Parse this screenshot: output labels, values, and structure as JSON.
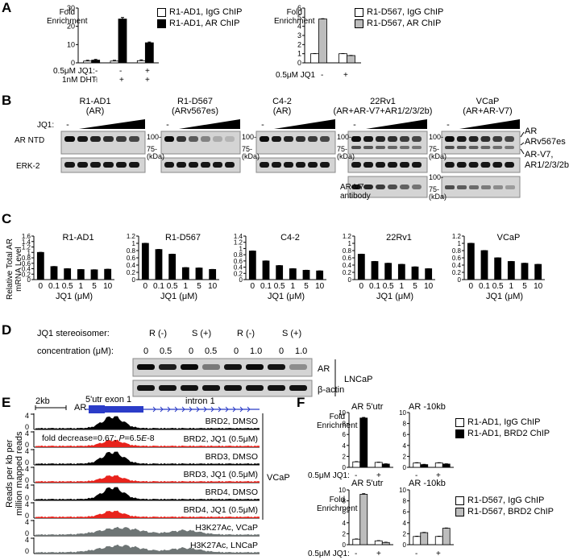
{
  "panels": {
    "A": "A",
    "B": "B",
    "C": "C",
    "D": "D",
    "E": "E",
    "F": "F"
  },
  "panelA": {
    "left": {
      "ylabel": "Fold\nEnrichment",
      "legend": [
        "R1-AD1, IgG ChIP",
        "R1-AD1, AR ChIP"
      ],
      "row1_label": "0.5μM JQ1:",
      "row1": [
        "-",
        "-",
        "+"
      ],
      "row2_label": "1nM DHT:",
      "row2": [
        "-",
        "+",
        "+"
      ]
    },
    "right": {
      "ylabel": "Fold\nEnrichment",
      "legend": [
        "R1-D567, IgG ChIP",
        "R1-D567, AR ChIP"
      ],
      "row1_label": "0.5μM JQ1",
      "row1": [
        "-",
        "+"
      ]
    }
  },
  "panelB": {
    "jq1_label": "JQ1:",
    "rows": [
      "AR NTD",
      "ERK-2"
    ],
    "cells": [
      {
        "name": "R1-AD1",
        "sub": "(AR)"
      },
      {
        "name": "R1-D567",
        "sub": "(ARv567es)"
      },
      {
        "name": "C4-2",
        "sub": "(AR)"
      },
      {
        "name": "22Rv1",
        "sub": "(AR+AR-V7+AR1/2/3/2b)"
      },
      {
        "name": "VCaP",
        "sub": "(AR+AR-V7)"
      }
    ],
    "markers": [
      "100-",
      "75-",
      "(kDa)"
    ],
    "right_labels": [
      "AR",
      "ARv567es",
      "AR-V7,",
      "AR1/2/3/2b"
    ],
    "v7_label": [
      "AR-V7",
      "antibody"
    ]
  },
  "panelC": {
    "ylabel": "Relative Total AR\nmRNA Level",
    "xlabel": "JQ1 (μM)",
    "xticks": [
      "0",
      "0.1",
      "0.5",
      "1",
      "5",
      "10"
    ]
  },
  "panelD": {
    "row1_label": "JQ1 stereoisomer:",
    "stereo": [
      "R (-)",
      "S (+)",
      "R (-)",
      "S (+)"
    ],
    "row2_label": "concentration (μM):",
    "conc": [
      "0",
      "0.5",
      "0",
      "0.5",
      "0",
      "1.0",
      "0",
      "1.0"
    ],
    "bands": [
      "AR",
      "β-actin"
    ],
    "cell": "LNCaP"
  },
  "panelE": {
    "scale": "2kb",
    "gene": "AR",
    "utr": "5'utr exon 1",
    "intron": "intron 1",
    "ylabel": "Reads per kb per\nmillion mapped reads",
    "annotation_a": "fold decrease=0.67; ",
    "annotation_b": "P",
    "annotation_c": "=6.5",
    "annotation_d": "E",
    "annotation_e": "-8",
    "group": "VCaP",
    "tracks": [
      {
        "label": "BRD2, DMSO",
        "color": "#000000"
      },
      {
        "label": "BRD2, JQ1 (0.5μM)",
        "color": "#e8231c"
      },
      {
        "label": "BRD3, DMSO",
        "color": "#000000"
      },
      {
        "label": "BRD3, JQ1 (0.5μM)",
        "color": "#e8231c"
      },
      {
        "label": "BRD4, DMSO",
        "color": "#000000"
      },
      {
        "label": "BRD4, JQ1 (0.5μM)",
        "color": "#e8231c"
      },
      {
        "label": "H3K27Ac, VCaP",
        "color": "#6e7575"
      },
      {
        "label": "H3K27Ac, LNCaP",
        "color": "#6e7575"
      }
    ],
    "ytick": "4"
  },
  "panelF": {
    "ylabel": "Fold\nEnrichment",
    "top_titles": [
      "AR 5'utr",
      "AR -10kb"
    ],
    "bottom_titles": [
      "AR 5'utr",
      "AR -10kb"
    ],
    "legend_top": [
      "R1-AD1, IgG ChIP",
      "R1-AD1, BRD2 ChIP"
    ],
    "legend_bottom": [
      "R1-D567, IgG ChIP",
      "R1-D567, BRD2 ChIP"
    ],
    "row_label": "0.5μM JQ1:",
    "row": [
      "-",
      "+"
    ]
  },
  "chart_data": [
    {
      "type": "bar",
      "categories": [
        "- / -",
        "- / +",
        "+ / +"
      ],
      "ylim": [
        0,
        30
      ],
      "yticks": [
        0,
        10,
        20,
        30
      ],
      "series": [
        {
          "name": "R1-AD1, IgG ChIP",
          "values": [
            1,
            1,
            1.2
          ]
        },
        {
          "name": "R1-AD1, AR ChIP",
          "values": [
            1.5,
            24,
            11
          ]
        }
      ]
    },
    {
      "type": "bar",
      "categories": [
        "-",
        "+"
      ],
      "ylim": [
        0,
        6
      ],
      "yticks": [
        0,
        1,
        2,
        3,
        4,
        5,
        6
      ],
      "series": [
        {
          "name": "R1-D567, IgG ChIP",
          "values": [
            1,
            1
          ]
        },
        {
          "name": "R1-D567, AR ChIP",
          "values": [
            4.8,
            0.8
          ]
        }
      ]
    },
    {
      "type": "bar",
      "title": "R1-AD1",
      "categories": [
        "0",
        "0.1",
        "0.5",
        "1",
        "5",
        "10"
      ],
      "ylim": [
        0,
        1.6
      ],
      "yticks": [
        0,
        0.2,
        0.4,
        0.6,
        0.8,
        1,
        1.2,
        1.4,
        1.6
      ],
      "values": [
        1.0,
        0.48,
        0.4,
        0.37,
        0.36,
        0.38
      ]
    },
    {
      "type": "bar",
      "title": "R1-D567",
      "categories": [
        "0",
        "0.1",
        "0.5",
        "1",
        "5",
        "10"
      ],
      "ylim": [
        0,
        1.2
      ],
      "yticks": [
        0,
        0.2,
        0.4,
        0.6,
        0.8,
        1,
        1.2
      ],
      "values": [
        1.0,
        0.83,
        0.7,
        0.33,
        0.32,
        0.28
      ]
    },
    {
      "type": "bar",
      "title": "C4-2",
      "categories": [
        "0",
        "0.1",
        "0.5",
        "1",
        "5",
        "10"
      ],
      "ylim": [
        0,
        1.4
      ],
      "yticks": [
        0,
        0.2,
        0.4,
        0.6,
        0.8,
        1,
        1.2,
        1.4
      ],
      "values": [
        0.92,
        0.6,
        0.45,
        0.35,
        0.3,
        0.28
      ]
    },
    {
      "type": "bar",
      "title": "22Rv1",
      "categories": [
        "0",
        "0.1",
        "0.5",
        "1",
        "5",
        "10"
      ],
      "ylim": [
        0,
        1.2
      ],
      "yticks": [
        0,
        0.2,
        0.4,
        0.6,
        0.8,
        1,
        1.2
      ],
      "values": [
        0.7,
        0.5,
        0.45,
        0.42,
        0.35,
        0.3
      ]
    },
    {
      "type": "bar",
      "title": "VCaP",
      "categories": [
        "0",
        "0.1",
        "0.5",
        "1",
        "5",
        "10"
      ],
      "ylim": [
        0,
        1.2
      ],
      "yticks": [
        0,
        0.2,
        0.4,
        0.6,
        0.8,
        1,
        1.2
      ],
      "values": [
        1.0,
        0.8,
        0.6,
        0.5,
        0.45,
        0.42
      ]
    },
    {
      "type": "bar",
      "title": "AR 5'utr",
      "categories": [
        "-",
        "+"
      ],
      "ylim": [
        0,
        10
      ],
      "yticks": [
        0,
        2,
        4,
        6,
        8,
        10
      ],
      "series": [
        {
          "name": "R1-AD1, IgG ChIP",
          "values": [
            1,
            0.9
          ]
        },
        {
          "name": "R1-AD1, BRD2 ChIP",
          "values": [
            9,
            0.6
          ]
        }
      ]
    },
    {
      "type": "bar",
      "title": "AR -10kb",
      "categories": [
        "-",
        "+"
      ],
      "ylim": [
        0,
        10
      ],
      "yticks": [
        0,
        2,
        4,
        6,
        8,
        10
      ],
      "series": [
        {
          "name": "R1-AD1, IgG ChIP",
          "values": [
            0.8,
            0.8
          ]
        },
        {
          "name": "R1-AD1, BRD2 ChIP",
          "values": [
            0.5,
            0.6
          ]
        }
      ]
    },
    {
      "type": "bar",
      "title": "AR 5'utr",
      "categories": [
        "-",
        "+"
      ],
      "ylim": [
        0,
        10
      ],
      "yticks": [
        0,
        2,
        4,
        6,
        8,
        10
      ],
      "series": [
        {
          "name": "R1-D567, IgG ChIP",
          "values": [
            1,
            0.7
          ]
        },
        {
          "name": "R1-D567, BRD2 ChIP",
          "values": [
            9.2,
            0.4
          ]
        }
      ]
    },
    {
      "type": "bar",
      "title": "AR -10kb",
      "categories": [
        "-",
        "+"
      ],
      "ylim": [
        0,
        10
      ],
      "yticks": [
        0,
        2,
        4,
        6,
        8,
        10
      ],
      "series": [
        {
          "name": "R1-D567, IgG ChIP",
          "values": [
            1.5,
            1.5
          ]
        },
        {
          "name": "R1-D567, BRD2 ChIP",
          "values": [
            2.2,
            3
          ]
        }
      ]
    }
  ]
}
